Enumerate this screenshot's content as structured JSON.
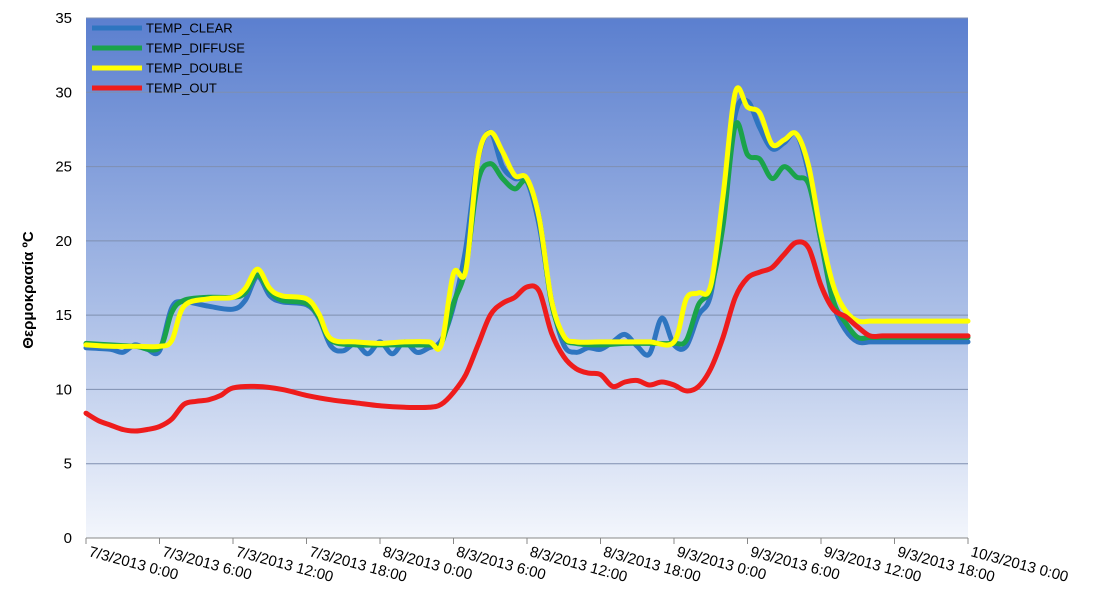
{
  "chart_data": {
    "type": "line",
    "title": "",
    "xlabel": "",
    "ylabel": "Θερμοκρασία ºC",
    "ylim": [
      0,
      35
    ],
    "yticks": [
      0,
      5,
      10,
      15,
      20,
      25,
      30,
      35
    ],
    "xticks": [
      "7/3/2013 0:00",
      "7/3/2013 6:00",
      "7/3/2013 12:00",
      "7/3/2013 18:00",
      "8/3/2013 0:00",
      "8/3/2013 6:00",
      "8/3/2013 12:00",
      "8/3/2013 18:00",
      "9/3/2013 0:00",
      "9/3/2013 6:00",
      "9/3/2013 12:00",
      "9/3/2013 18:00",
      "10/3/2013 0:00"
    ],
    "x_unit": "hours since 7/3/2013 0:00",
    "xlim": [
      0,
      72
    ],
    "grid": true,
    "legend": "top-left",
    "series": [
      {
        "name": "TEMP_CLEAR",
        "color": "#2e75c0",
        "x": [
          0,
          2,
          3,
          4,
          5,
          6,
          7,
          8,
          10,
          12,
          13,
          14,
          15,
          16,
          18,
          19,
          20,
          21,
          22,
          23,
          24,
          25,
          26,
          27,
          28,
          29,
          30,
          31,
          32,
          33,
          34,
          35,
          36,
          37,
          38,
          39,
          40,
          41,
          42,
          43,
          44,
          45,
          46,
          47,
          48,
          49,
          50,
          51,
          52,
          53,
          54,
          55,
          56,
          57,
          58,
          59,
          60,
          61,
          62,
          63,
          64,
          65,
          66,
          67,
          68,
          69,
          70,
          71,
          72
        ],
        "y": [
          12.8,
          12.7,
          12.5,
          13.0,
          12.7,
          12.6,
          15.5,
          15.9,
          15.6,
          15.4,
          16.0,
          17.6,
          16.3,
          15.9,
          15.7,
          14.8,
          12.9,
          12.6,
          13.1,
          12.4,
          13.2,
          12.4,
          13.2,
          12.5,
          12.8,
          13.3,
          15.6,
          19.5,
          25.5,
          27.3,
          25.0,
          24.2,
          24.0,
          21.0,
          16.0,
          13.0,
          12.5,
          12.8,
          12.7,
          13.2,
          13.7,
          12.9,
          12.4,
          14.8,
          13.0,
          12.9,
          15.0,
          16.4,
          22.0,
          28.5,
          29.4,
          27.6,
          26.2,
          26.6,
          27.2,
          24.5,
          20.0,
          15.8,
          14.0,
          13.2,
          13.2,
          13.2,
          13.2,
          13.2,
          13.2,
          13.2,
          13.2,
          13.2,
          13.2
        ]
      },
      {
        "name": "TEMP_DIFFUSE",
        "color": "#1aa34a",
        "x": [
          0,
          2,
          4,
          6,
          7,
          8,
          10,
          12,
          13,
          14,
          15,
          16,
          18,
          19,
          20,
          22,
          24,
          26,
          28,
          29,
          30,
          31,
          32,
          33,
          34,
          35,
          36,
          37,
          38,
          39,
          40,
          42,
          44,
          46,
          48,
          49,
          50,
          51,
          52,
          53,
          54,
          55,
          56,
          57,
          58,
          59,
          60,
          61,
          62,
          63,
          64,
          65,
          66,
          67,
          68,
          69,
          70,
          71,
          72
        ],
        "y": [
          13.1,
          13.0,
          12.9,
          12.8,
          15.2,
          16.0,
          16.2,
          16.2,
          16.5,
          17.7,
          16.6,
          16.0,
          15.8,
          14.9,
          13.3,
          13.0,
          13.0,
          13.0,
          13.0,
          13.1,
          15.8,
          18.2,
          24.0,
          25.2,
          24.2,
          23.5,
          24.0,
          21.5,
          15.8,
          13.5,
          13.1,
          13.0,
          13.1,
          13.1,
          13.1,
          13.3,
          15.7,
          16.8,
          21.0,
          27.8,
          25.8,
          25.5,
          24.2,
          25.0,
          24.3,
          23.8,
          20.0,
          16.0,
          14.5,
          13.5,
          13.5,
          13.5,
          13.5,
          13.5,
          13.5,
          13.5,
          13.5,
          13.5,
          13.5
        ]
      },
      {
        "name": "TEMP_DOUBLE",
        "color": "#ffff00",
        "x": [
          0,
          2,
          4,
          6,
          7,
          8,
          10,
          12,
          13,
          14,
          15,
          16,
          18,
          19,
          20,
          22,
          24,
          26,
          28,
          29,
          30,
          31,
          32,
          33,
          34,
          35,
          36,
          37,
          38,
          39,
          40,
          42,
          44,
          46,
          48,
          49,
          50,
          51,
          52,
          53,
          54,
          55,
          56,
          57,
          58,
          59,
          60,
          61,
          62,
          63,
          64,
          65,
          66,
          67,
          68,
          69,
          70,
          71,
          72
        ],
        "y": [
          13.0,
          12.9,
          12.9,
          12.9,
          13.3,
          15.6,
          16.1,
          16.2,
          16.8,
          18.1,
          16.8,
          16.3,
          16.1,
          15.1,
          13.4,
          13.2,
          13.1,
          13.2,
          13.2,
          13.0,
          17.8,
          18.0,
          25.5,
          27.3,
          26.0,
          24.4,
          24.2,
          21.5,
          16.0,
          13.6,
          13.2,
          13.2,
          13.2,
          13.2,
          13.2,
          16.1,
          16.5,
          17.0,
          23.0,
          30.0,
          29.0,
          28.6,
          26.5,
          26.8,
          27.2,
          25.0,
          20.5,
          17.0,
          15.3,
          14.6,
          14.6,
          14.6,
          14.6,
          14.6,
          14.6,
          14.6,
          14.6,
          14.6,
          14.6
        ]
      },
      {
        "name": "TEMP_OUT",
        "color": "#ee1c1c",
        "x": [
          0,
          1,
          2,
          3,
          4,
          5,
          6,
          7,
          8,
          9,
          10,
          11,
          12,
          14,
          16,
          18,
          20,
          22,
          24,
          26,
          28,
          29,
          30,
          31,
          32,
          33,
          34,
          35,
          36,
          37,
          38,
          39,
          40,
          41,
          42,
          43,
          44,
          45,
          46,
          47,
          48,
          49,
          50,
          51,
          52,
          53,
          54,
          55,
          56,
          57,
          58,
          59,
          60,
          61,
          62,
          63,
          64,
          65,
          66,
          67,
          68,
          69,
          70,
          71,
          72
        ],
        "y": [
          8.4,
          7.9,
          7.6,
          7.3,
          7.2,
          7.3,
          7.5,
          8.0,
          9.0,
          9.2,
          9.3,
          9.6,
          10.1,
          10.2,
          10.0,
          9.6,
          9.3,
          9.1,
          8.9,
          8.8,
          8.8,
          9.0,
          9.8,
          11.0,
          13.0,
          15.0,
          15.8,
          16.2,
          16.9,
          16.6,
          13.8,
          12.2,
          11.4,
          11.1,
          11.0,
          10.2,
          10.5,
          10.6,
          10.3,
          10.5,
          10.3,
          9.9,
          10.2,
          11.4,
          13.5,
          16.2,
          17.5,
          17.9,
          18.2,
          19.1,
          19.9,
          19.5,
          17.0,
          15.4,
          14.9,
          14.2,
          13.6,
          13.6,
          13.6,
          13.6,
          13.6,
          13.6,
          13.6,
          13.6,
          13.6
        ]
      }
    ]
  }
}
